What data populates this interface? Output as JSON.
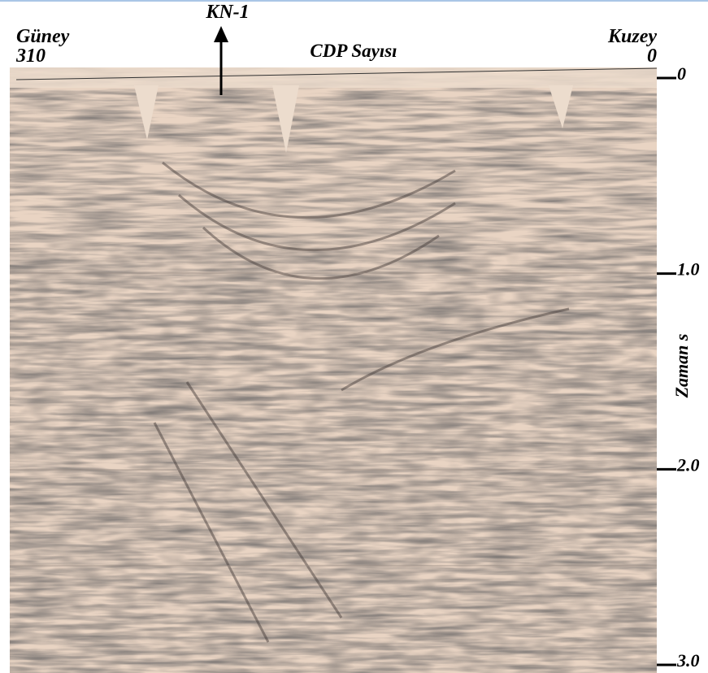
{
  "well": "KN-1",
  "left": {
    "direction": "Güney",
    "cdp": "310"
  },
  "center_label": "CDP Sayısı",
  "right": {
    "direction": "Kuzey",
    "cdp": "0"
  },
  "time_axis": {
    "label": "Zaman s",
    "ticks": [
      "0",
      "1.0",
      "2.0",
      "3.0"
    ]
  }
}
